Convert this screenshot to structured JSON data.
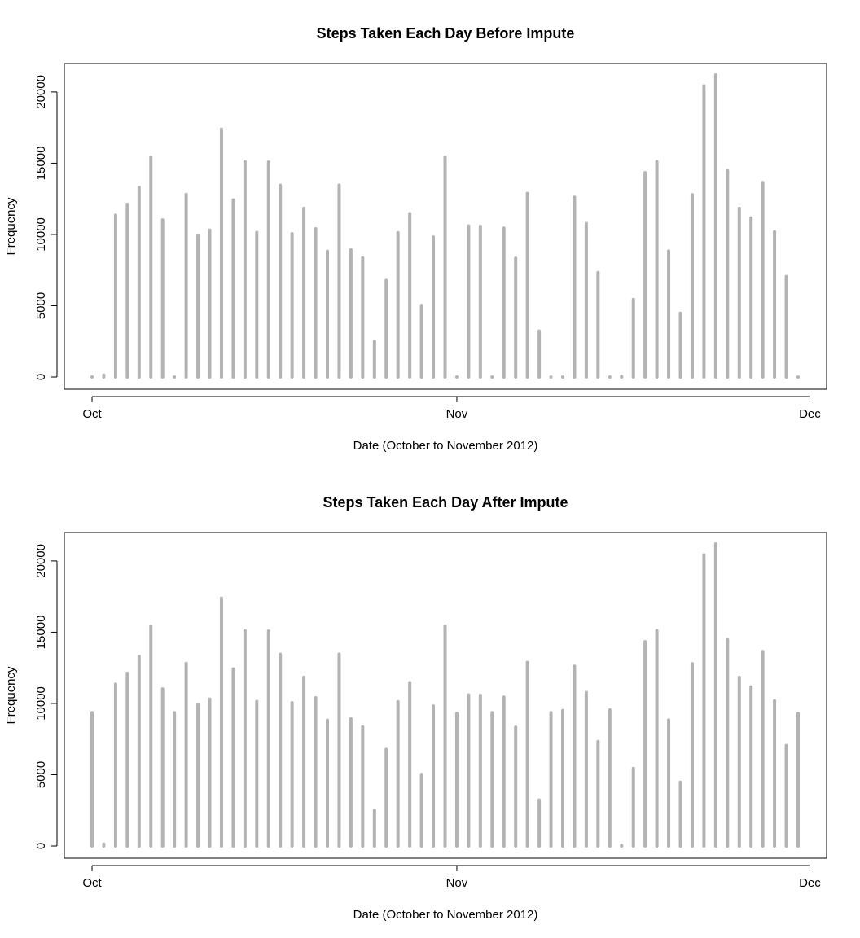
{
  "chart_data": [
    {
      "type": "bar",
      "title": "Steps Taken Each Day Before Impute",
      "xlabel": "Date (October to November 2012)",
      "ylabel": "Frequency",
      "x_ticks": [
        "Oct",
        "Nov",
        "Dec"
      ],
      "y_ticks": [
        "0",
        "5000",
        "10000",
        "15000",
        "20000"
      ],
      "ylim": [
        0,
        21194
      ],
      "bar_color": "#b3b3b3",
      "x_start": "2012-10-01",
      "categories": [
        "2012-10-01",
        "2012-10-02",
        "2012-10-03",
        "2012-10-04",
        "2012-10-05",
        "2012-10-06",
        "2012-10-07",
        "2012-10-08",
        "2012-10-09",
        "2012-10-10",
        "2012-10-11",
        "2012-10-12",
        "2012-10-13",
        "2012-10-14",
        "2012-10-15",
        "2012-10-16",
        "2012-10-17",
        "2012-10-18",
        "2012-10-19",
        "2012-10-20",
        "2012-10-21",
        "2012-10-22",
        "2012-10-23",
        "2012-10-24",
        "2012-10-25",
        "2012-10-26",
        "2012-10-27",
        "2012-10-28",
        "2012-10-29",
        "2012-10-30",
        "2012-10-31",
        "2012-11-01",
        "2012-11-02",
        "2012-11-03",
        "2012-11-04",
        "2012-11-05",
        "2012-11-06",
        "2012-11-07",
        "2012-11-08",
        "2012-11-09",
        "2012-11-10",
        "2012-11-11",
        "2012-11-12",
        "2012-11-13",
        "2012-11-14",
        "2012-11-15",
        "2012-11-16",
        "2012-11-17",
        "2012-11-18",
        "2012-11-19",
        "2012-11-20",
        "2012-11-21",
        "2012-11-22",
        "2012-11-23",
        "2012-11-24",
        "2012-11-25",
        "2012-11-26",
        "2012-11-27",
        "2012-11-28",
        "2012-11-29",
        "2012-11-30"
      ],
      "values": [
        0,
        126,
        11352,
        12116,
        13294,
        15420,
        11015,
        0,
        12811,
        9900,
        10304,
        17382,
        12426,
        15098,
        10139,
        15084,
        13452,
        10056,
        11829,
        10395,
        8821,
        13460,
        8918,
        8355,
        2492,
        6778,
        10119,
        11458,
        5018,
        9819,
        15414,
        0,
        10600,
        10571,
        0,
        10439,
        8334,
        12883,
        3219,
        0,
        0,
        12608,
        10765,
        7336,
        0,
        41,
        5441,
        14339,
        15110,
        8841,
        4472,
        12787,
        20427,
        21194,
        14478,
        11834,
        11162,
        13646,
        10183,
        7047,
        0
      ]
    },
    {
      "type": "bar",
      "title": "Steps Taken Each Day After Impute",
      "xlabel": "Date (October to November 2012)",
      "ylabel": "Frequency",
      "x_ticks": [
        "Oct",
        "Nov",
        "Dec"
      ],
      "y_ticks": [
        "0",
        "5000",
        "10000",
        "15000",
        "20000"
      ],
      "ylim": [
        0,
        21194
      ],
      "bar_color": "#b3b3b3",
      "x_start": "2012-10-01",
      "categories": [
        "2012-10-01",
        "2012-10-02",
        "2012-10-03",
        "2012-10-04",
        "2012-10-05",
        "2012-10-06",
        "2012-10-07",
        "2012-10-08",
        "2012-10-09",
        "2012-10-10",
        "2012-10-11",
        "2012-10-12",
        "2012-10-13",
        "2012-10-14",
        "2012-10-15",
        "2012-10-16",
        "2012-10-17",
        "2012-10-18",
        "2012-10-19",
        "2012-10-20",
        "2012-10-21",
        "2012-10-22",
        "2012-10-23",
        "2012-10-24",
        "2012-10-25",
        "2012-10-26",
        "2012-10-27",
        "2012-10-28",
        "2012-10-29",
        "2012-10-30",
        "2012-10-31",
        "2012-11-01",
        "2012-11-02",
        "2012-11-03",
        "2012-11-04",
        "2012-11-05",
        "2012-11-06",
        "2012-11-07",
        "2012-11-08",
        "2012-11-09",
        "2012-11-10",
        "2012-11-11",
        "2012-11-12",
        "2012-11-13",
        "2012-11-14",
        "2012-11-15",
        "2012-11-16",
        "2012-11-17",
        "2012-11-18",
        "2012-11-19",
        "2012-11-20",
        "2012-11-21",
        "2012-11-22",
        "2012-11-23",
        "2012-11-24",
        "2012-11-25",
        "2012-11-26",
        "2012-11-27",
        "2012-11-28",
        "2012-11-29",
        "2012-11-30"
      ],
      "values": [
        9354,
        126,
        11352,
        12116,
        13294,
        15420,
        11015,
        9354,
        12811,
        9900,
        10304,
        17382,
        12426,
        15098,
        10139,
        15084,
        13452,
        10056,
        11829,
        10395,
        8821,
        13460,
        8918,
        8355,
        2492,
        6778,
        10119,
        11458,
        5018,
        9819,
        15414,
        9300,
        10600,
        10571,
        9354,
        10439,
        8334,
        12883,
        3219,
        9354,
        9500,
        12608,
        10765,
        7336,
        9550,
        41,
        5441,
        14339,
        15110,
        8841,
        4472,
        12787,
        20427,
        21194,
        14478,
        11834,
        11162,
        13646,
        10183,
        7047,
        9300
      ]
    }
  ]
}
